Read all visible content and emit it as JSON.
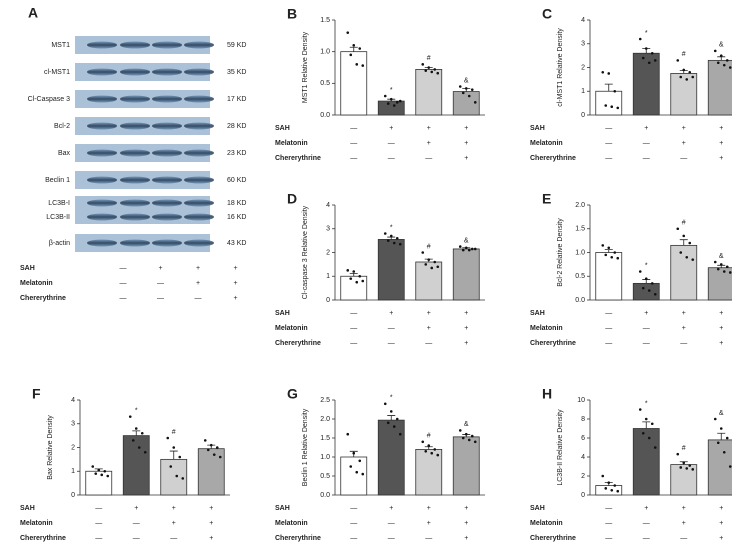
{
  "blot": {
    "panel": "A",
    "rows": [
      {
        "label": "MST1",
        "kd": "59 KD"
      },
      {
        "label": "cl-MST1",
        "kd": "35 KD"
      },
      {
        "label": "Cl-Caspase 3",
        "kd": "17 KD"
      },
      {
        "label": "Bcl-2",
        "kd": "28 KD"
      },
      {
        "label": "Bax",
        "kd": "23 KD"
      },
      {
        "label": "Beclin 1",
        "kd": "60 KD"
      },
      {
        "label": "LC3B-I",
        "kd": "18 KD"
      },
      {
        "label": "LC3B-II",
        "kd": "16 KD"
      },
      {
        "label": "β-actin",
        "kd": "43 KD"
      }
    ],
    "conditions": [
      {
        "name": "SAH",
        "marks": [
          "—",
          "+",
          "+",
          "+"
        ]
      },
      {
        "name": "Melatonin",
        "marks": [
          "—",
          "—",
          "+",
          "+"
        ]
      },
      {
        "name": "Chererythrine",
        "marks": [
          "—",
          "—",
          "—",
          "+"
        ]
      }
    ]
  },
  "chart_data": [
    {
      "type": "bar",
      "panel": "B",
      "y_label": "MST1 Relative Density",
      "colors": [
        "#ffffff",
        "#555555",
        "#d0d0d0",
        "#a8a8a8"
      ],
      "values": [
        1.0,
        0.22,
        0.72,
        0.37
      ],
      "errors": [
        0.07,
        0.03,
        0.03,
        0.05
      ],
      "annotations": [
        null,
        "*",
        "#",
        "&"
      ],
      "points": [
        [
          1.3,
          1.1,
          1.05,
          0.95,
          0.8,
          0.78
        ],
        [
          0.3,
          0.25,
          0.2,
          0.18,
          0.15,
          0.22
        ],
        [
          0.8,
          0.75,
          0.72,
          0.7,
          0.68,
          0.66
        ],
        [
          0.45,
          0.42,
          0.4,
          0.35,
          0.3,
          0.2
        ]
      ],
      "ylim": [
        0,
        1.5
      ],
      "yticks": [
        {
          "value": 0,
          "label": "0.0"
        },
        0.5,
        {
          "value": 1,
          "label": "1.0"
        },
        1.5
      ],
      "conditions": [
        {
          "name": "SAH",
          "marks": [
            "—",
            "+",
            "+",
            "+"
          ]
        },
        {
          "name": "Melatonin",
          "marks": [
            "—",
            "—",
            "+",
            "+"
          ]
        },
        {
          "name": "Chererythrine",
          "marks": [
            "—",
            "—",
            "—",
            "+"
          ]
        }
      ]
    },
    {
      "type": "bar",
      "panel": "C",
      "y_label": "cl-MST1 Relative Density",
      "colors": [
        "#ffffff",
        "#555555",
        "#d0d0d0",
        "#a8a8a8"
      ],
      "values": [
        1.0,
        2.6,
        1.75,
        2.3
      ],
      "errors": [
        0.3,
        0.2,
        0.12,
        0.15
      ],
      "annotations": [
        null,
        "*",
        "#",
        "&"
      ],
      "points": [
        [
          1.8,
          1.75,
          1.0,
          0.4,
          0.35,
          0.3
        ],
        [
          3.2,
          2.8,
          2.6,
          2.4,
          2.2,
          2.3
        ],
        [
          2.3,
          1.9,
          1.8,
          1.6,
          1.5,
          1.6
        ],
        [
          2.7,
          2.5,
          2.3,
          2.2,
          2.1,
          2.0
        ]
      ],
      "ylim": [
        0,
        4
      ],
      "yticks": [
        0,
        1,
        2,
        3,
        4
      ],
      "conditions": [
        {
          "name": "SAH",
          "marks": [
            "—",
            "+",
            "+",
            "+"
          ]
        },
        {
          "name": "Melatonin",
          "marks": [
            "—",
            "—",
            "+",
            "+"
          ]
        },
        {
          "name": "Chererythrine",
          "marks": [
            "—",
            "—",
            "—",
            "+"
          ]
        }
      ]
    },
    {
      "type": "bar",
      "panel": "D",
      "y_label": "Cl-caspase 3 Relative Density",
      "colors": [
        "#ffffff",
        "#555555",
        "#d0d0d0",
        "#a8a8a8"
      ],
      "values": [
        1.0,
        2.55,
        1.6,
        2.15
      ],
      "errors": [
        0.12,
        0.1,
        0.12,
        0.05
      ],
      "annotations": [
        null,
        "*",
        "#",
        "&"
      ],
      "points": [
        [
          1.25,
          1.2,
          1.0,
          0.9,
          0.75,
          0.8
        ],
        [
          2.8,
          2.7,
          2.6,
          2.5,
          2.4,
          2.35
        ],
        [
          2.0,
          1.7,
          1.6,
          1.5,
          1.35,
          1.4
        ],
        [
          2.25,
          2.2,
          2.15,
          2.1,
          2.1,
          2.15
        ]
      ],
      "ylim": [
        0,
        4
      ],
      "yticks": [
        0,
        1,
        2,
        3,
        4
      ],
      "conditions": [
        {
          "name": "SAH",
          "marks": [
            "—",
            "+",
            "+",
            "+"
          ]
        },
        {
          "name": "Melatonin",
          "marks": [
            "—",
            "—",
            "+",
            "+"
          ]
        },
        {
          "name": "Chererythrine",
          "marks": [
            "—",
            "—",
            "—",
            "+"
          ]
        }
      ]
    },
    {
      "type": "bar",
      "panel": "E",
      "y_label": "Bcl-2 Relative Density",
      "colors": [
        "#ffffff",
        "#555555",
        "#d0d0d0",
        "#a8a8a8"
      ],
      "values": [
        1.0,
        0.35,
        1.15,
        0.68
      ],
      "errors": [
        0.06,
        0.08,
        0.12,
        0.05
      ],
      "annotations": [
        null,
        "*",
        "#",
        "&"
      ],
      "points": [
        [
          1.15,
          1.1,
          1.0,
          0.95,
          0.9,
          0.88
        ],
        [
          0.6,
          0.45,
          0.35,
          0.25,
          0.2,
          0.12
        ],
        [
          1.5,
          1.35,
          1.2,
          1.0,
          0.9,
          0.85
        ],
        [
          0.8,
          0.75,
          0.7,
          0.65,
          0.6,
          0.58
        ]
      ],
      "ylim": [
        0,
        2
      ],
      "yticks": [
        {
          "value": 0,
          "label": "0.0"
        },
        0.5,
        {
          "value": 1,
          "label": "1.0"
        },
        1.5,
        {
          "value": 2,
          "label": "2.0"
        }
      ],
      "conditions": [
        {
          "name": "SAH",
          "marks": [
            "—",
            "+",
            "+",
            "+"
          ]
        },
        {
          "name": "Melatonin",
          "marks": [
            "—",
            "—",
            "+",
            "+"
          ]
        },
        {
          "name": "Chererythrine",
          "marks": [
            "—",
            "—",
            "—",
            "+"
          ]
        }
      ]
    },
    {
      "type": "bar",
      "panel": "F",
      "y_label": "Bax Relative Density",
      "colors": [
        "#ffffff",
        "#555555",
        "#d0d0d0",
        "#a8a8a8"
      ],
      "values": [
        1.0,
        2.5,
        1.5,
        1.95
      ],
      "errors": [
        0.1,
        0.2,
        0.35,
        0.15
      ],
      "annotations": [
        null,
        "*",
        "#",
        null
      ],
      "points": [
        [
          1.2,
          1.05,
          1.0,
          0.9,
          0.85,
          0.8
        ],
        [
          3.3,
          2.8,
          2.6,
          2.3,
          2.0,
          1.8
        ],
        [
          2.4,
          2.0,
          1.6,
          1.2,
          0.8,
          0.7
        ],
        [
          2.3,
          2.1,
          2.0,
          1.9,
          1.7,
          1.6
        ]
      ],
      "ylim": [
        0,
        4
      ],
      "yticks": [
        0,
        1,
        2,
        3,
        4
      ],
      "conditions": [
        {
          "name": "SAH",
          "marks": [
            "—",
            "+",
            "+",
            "+"
          ]
        },
        {
          "name": "Melatonin",
          "marks": [
            "—",
            "—",
            "+",
            "+"
          ]
        },
        {
          "name": "Chererythrine",
          "marks": [
            "—",
            "—",
            "—",
            "+"
          ]
        }
      ]
    },
    {
      "type": "bar",
      "panel": "G",
      "y_label": "Beclin 1 Relative Density",
      "colors": [
        "#ffffff",
        "#555555",
        "#d0d0d0",
        "#a8a8a8"
      ],
      "values": [
        1.0,
        1.97,
        1.2,
        1.53
      ],
      "errors": [
        0.15,
        0.12,
        0.07,
        0.06
      ],
      "annotations": [
        null,
        "*",
        "#",
        "&"
      ],
      "points": [
        [
          1.6,
          1.1,
          0.9,
          0.75,
          0.6,
          0.55
        ],
        [
          2.4,
          2.2,
          2.0,
          1.9,
          1.8,
          1.6
        ],
        [
          1.4,
          1.3,
          1.2,
          1.15,
          1.1,
          1.05
        ],
        [
          1.7,
          1.6,
          1.55,
          1.5,
          1.45,
          1.4
        ]
      ],
      "ylim": [
        0,
        2.5
      ],
      "yticks": [
        {
          "value": 0,
          "label": "0.0"
        },
        0.5,
        {
          "value": 1,
          "label": "1.0"
        },
        1.5,
        {
          "value": 2,
          "label": "2.0"
        },
        2.5
      ],
      "conditions": [
        {
          "name": "SAH",
          "marks": [
            "—",
            "+",
            "+",
            "+"
          ]
        },
        {
          "name": "Melatonin",
          "marks": [
            "—",
            "—",
            "+",
            "+"
          ]
        },
        {
          "name": "Chererythrine",
          "marks": [
            "—",
            "—",
            "—",
            "+"
          ]
        }
      ]
    },
    {
      "type": "bar",
      "panel": "H",
      "y_label": "LC3B-II Relative Density",
      "colors": [
        "#ffffff",
        "#555555",
        "#d0d0d0",
        "#a8a8a8"
      ],
      "values": [
        1.0,
        7.0,
        3.2,
        5.8
      ],
      "errors": [
        0.3,
        0.7,
        0.3,
        0.7
      ],
      "annotations": [
        null,
        "*",
        "#",
        "&"
      ],
      "points": [
        [
          2.0,
          1.3,
          1.0,
          0.7,
          0.5,
          0.4
        ],
        [
          9.0,
          8.0,
          7.5,
          6.5,
          6.0,
          5.0
        ],
        [
          4.3,
          3.4,
          3.1,
          2.9,
          2.8,
          2.7
        ],
        [
          8.0,
          7.0,
          6.0,
          5.5,
          4.5,
          3.0
        ]
      ],
      "ylim": [
        0,
        10
      ],
      "yticks": [
        0,
        2,
        4,
        6,
        8,
        10
      ],
      "conditions": [
        {
          "name": "SAH",
          "marks": [
            "—",
            "+",
            "+",
            "+"
          ]
        },
        {
          "name": "Melatonin",
          "marks": [
            "—",
            "—",
            "+",
            "+"
          ]
        },
        {
          "name": "Chererythrine",
          "marks": [
            "—",
            "—",
            "—",
            "+"
          ]
        }
      ]
    }
  ]
}
